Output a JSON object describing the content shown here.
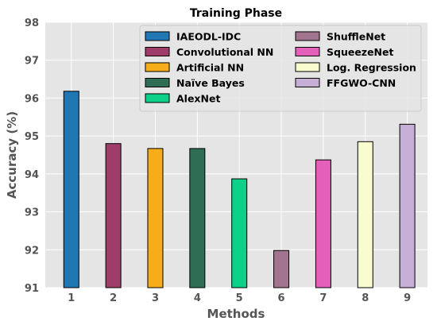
{
  "chart_data": {
    "type": "bar",
    "title": "Training Phase",
    "xlabel": "Methods",
    "ylabel": "Accuracy (%)",
    "categories": [
      "1",
      "2",
      "3",
      "4",
      "5",
      "6",
      "7",
      "8",
      "9"
    ],
    "series": [
      {
        "name": "IAEODL-IDC",
        "values": [
          96.18,
          null,
          null,
          null,
          null,
          null,
          null,
          null,
          null
        ],
        "color": "#1f77b4"
      },
      {
        "name": "Convolutional NN",
        "values": [
          null,
          94.8,
          null,
          null,
          null,
          null,
          null,
          null,
          null
        ],
        "color": "#9e3d6a"
      },
      {
        "name": "Artificial NN",
        "values": [
          null,
          null,
          94.67,
          null,
          null,
          null,
          null,
          null,
          null
        ],
        "color": "#f6ad1a"
      },
      {
        "name": "Naïve Bayes",
        "values": [
          null,
          null,
          null,
          94.67,
          null,
          null,
          null,
          null,
          null
        ],
        "color": "#2f6d55"
      },
      {
        "name": "AlexNet",
        "values": [
          null,
          null,
          null,
          null,
          93.87,
          null,
          null,
          null,
          null
        ],
        "color": "#0ccf88"
      },
      {
        "name": "ShuffleNet",
        "values": [
          null,
          null,
          null,
          null,
          null,
          91.98,
          null,
          null,
          null
        ],
        "color": "#a2748f"
      },
      {
        "name": "SqueezeNet",
        "values": [
          null,
          null,
          null,
          null,
          null,
          null,
          94.37,
          null,
          null
        ],
        "color": "#e25fba"
      },
      {
        "name": "Log. Regression",
        "values": [
          null,
          null,
          null,
          null,
          null,
          null,
          null,
          94.85,
          null
        ],
        "color": "#f8fccf"
      },
      {
        "name": "FFGWO-CNN",
        "values": [
          null,
          null,
          null,
          null,
          null,
          null,
          null,
          null,
          95.31
        ],
        "color": "#c6afd7"
      }
    ],
    "ylim": [
      91,
      98
    ],
    "yticks": [
      "91",
      "92",
      "93",
      "94",
      "95",
      "96",
      "97",
      "98"
    ],
    "grid": true,
    "legend_position": "top-right"
  }
}
